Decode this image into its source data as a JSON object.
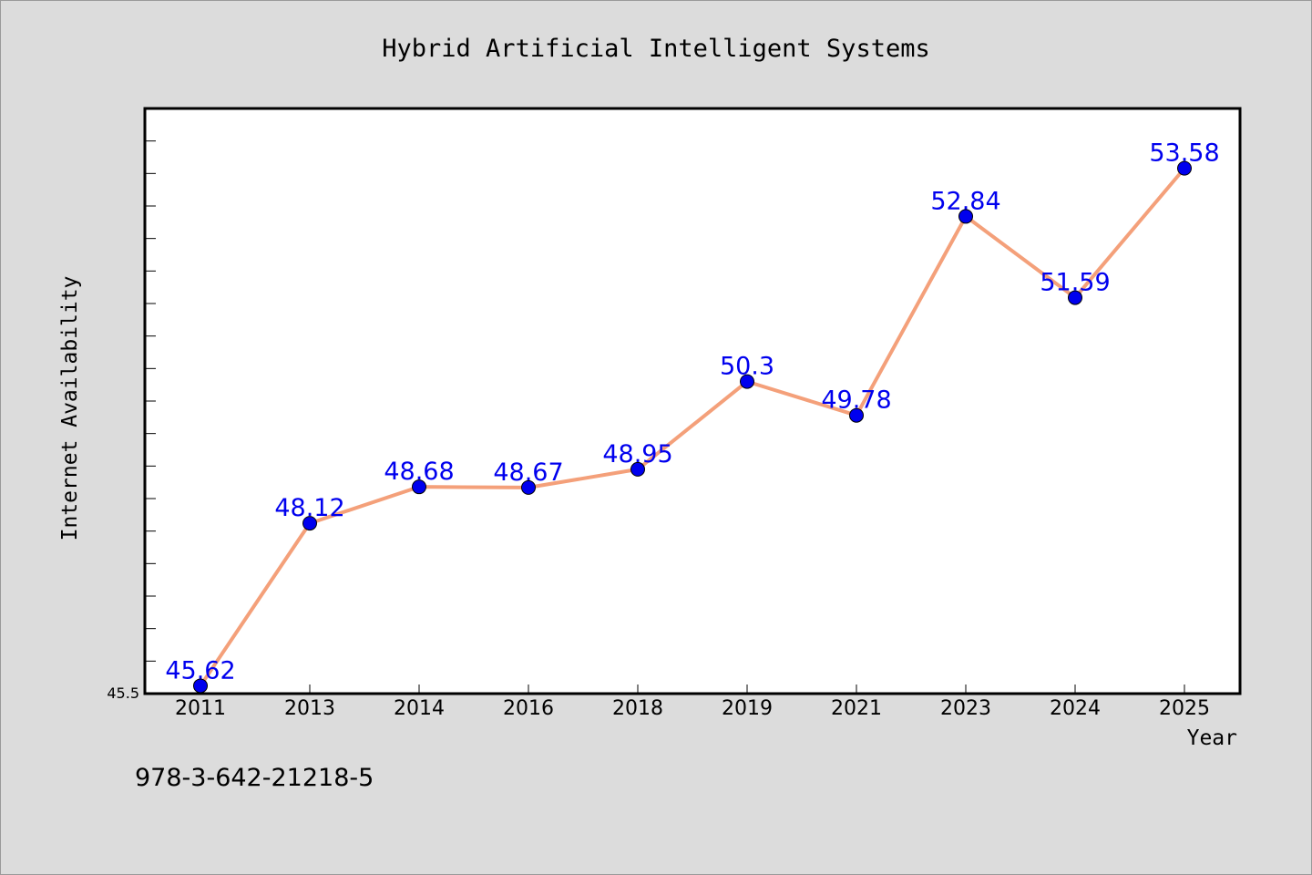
{
  "chart_data": {
    "type": "line",
    "title": "Hybrid Artificial Intelligent Systems",
    "xlabel": "Year",
    "ylabel": "Internet Availability",
    "categories": [
      "2011",
      "2013",
      "2014",
      "2016",
      "2018",
      "2019",
      "2021",
      "2023",
      "2024",
      "2025"
    ],
    "series": [
      {
        "values": [
          45.62,
          48.12,
          48.68,
          48.67,
          48.95,
          50.3,
          49.78,
          52.84,
          51.59,
          53.58
        ]
      }
    ],
    "data_labels": [
      "45.62",
      "48.12",
      "48.68",
      "48.67",
      "48.95",
      "50.3",
      "49.78",
      "52.84",
      "51.59",
      "53.58"
    ],
    "ylim": [
      45.5,
      54.5
    ],
    "y_tick_label": "45.5",
    "grid": false,
    "line_color": "#f4a07a",
    "marker_color": "#0000ee",
    "label_color": "#0000ee",
    "annotation": "978-3-642-21218-5"
  }
}
